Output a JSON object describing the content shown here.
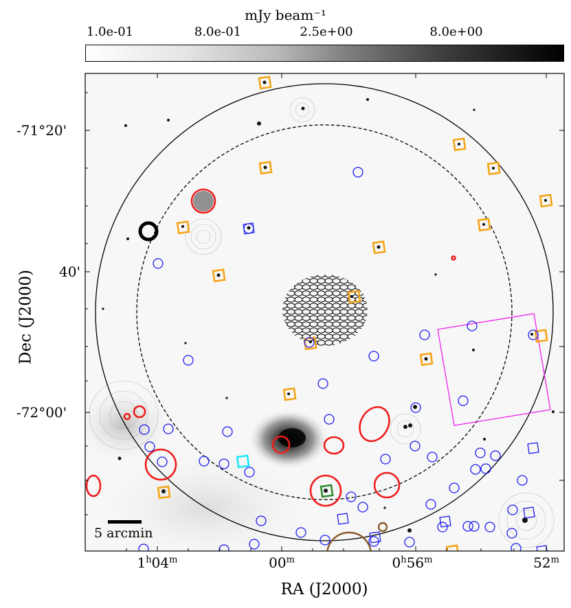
{
  "colorbar": {
    "label": "mJy beam⁻¹",
    "ticks": [
      "1.0e-01",
      "8.0e-01",
      "2.5e+00",
      "8.0e+00"
    ],
    "colormap": "gray reversed"
  },
  "axes": {
    "xlabel": "RA (J2000)",
    "ylabel": "Dec (J2000)",
    "x_ticks": [
      {
        "h": "1",
        "hs": "h",
        "m": "04",
        "ms": "m"
      },
      {
        "h": "",
        "hs": "",
        "m": "00",
        "ms": "m"
      },
      {
        "h": "0",
        "hs": "h",
        "m": "56",
        "ms": "m"
      },
      {
        "h": "",
        "hs": "",
        "m": "52",
        "ms": "m"
      }
    ],
    "y_ticks": [
      "-71°20'",
      "40'",
      "-72°00'"
    ]
  },
  "scale_bar": {
    "label": "5 arcmin"
  },
  "colors": {
    "region_orange": "#f5a416",
    "region_blue": "#1c1cf0",
    "region_red": "#ee1c1c",
    "region_magenta": "#ee20ee",
    "region_cyan": "#1fe6f2",
    "region_green": "#2e8b2e",
    "region_brown": "#8b5a2b",
    "frame": "#000000"
  }
}
